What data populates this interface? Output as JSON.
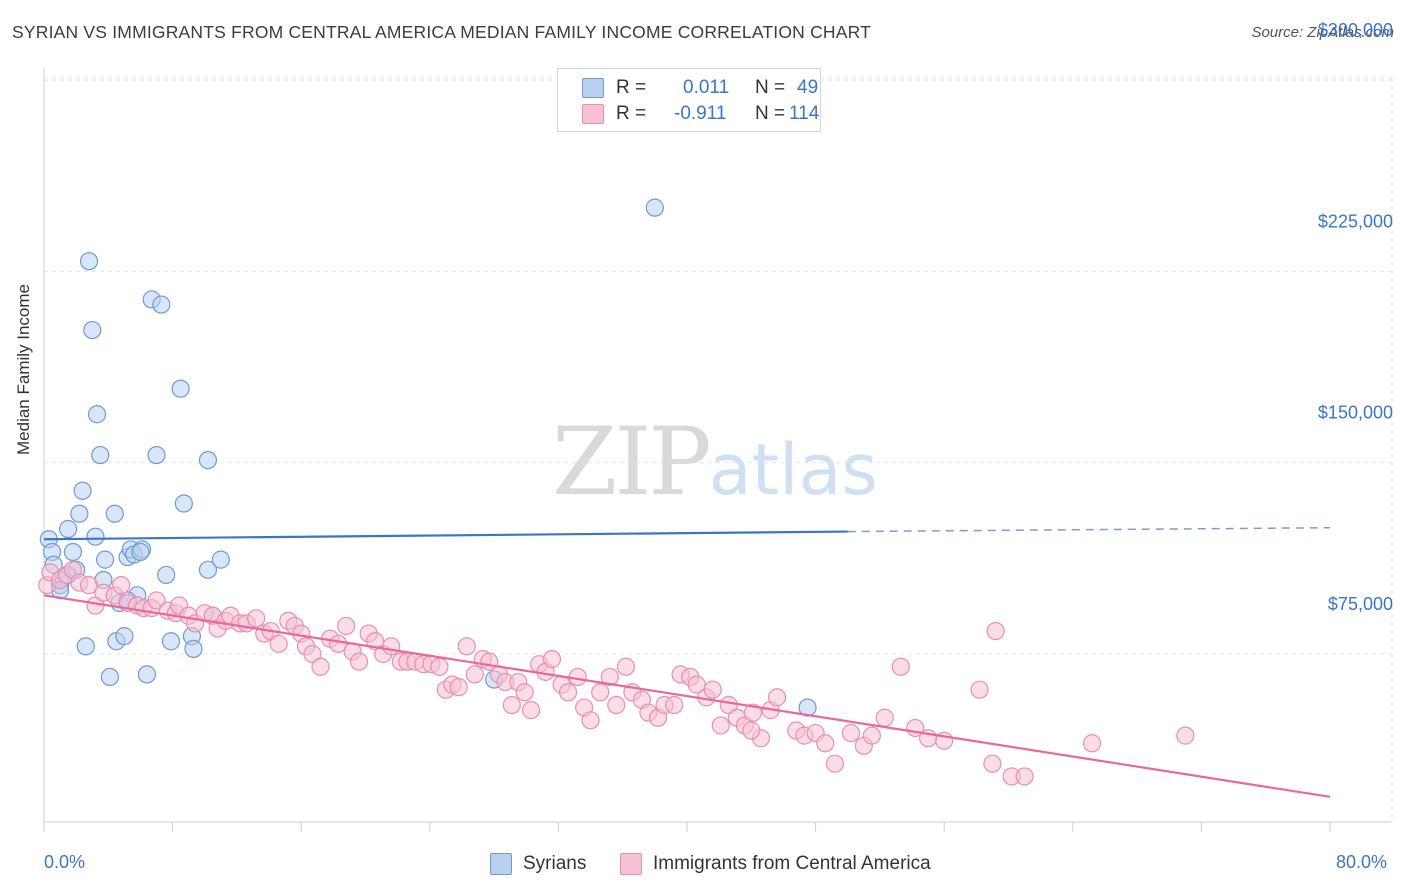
{
  "header": {
    "title": "SYRIAN VS IMMIGRANTS FROM CENTRAL AMERICA MEDIAN FAMILY INCOME CORRELATION CHART",
    "source": "Source: ZipAtlas.com"
  },
  "watermark": {
    "zip": "ZIP",
    "atlas": "atlas"
  },
  "legend_top": {
    "rows": [
      {
        "r_label": "R =",
        "r_value": "0.011",
        "n_label": "N =",
        "n_value": "49"
      },
      {
        "r_label": "R =",
        "r_value": "-0.911",
        "n_label": "N =",
        "n_value": "114"
      }
    ]
  },
  "legend_bottom": {
    "items": [
      {
        "label": "Syrians"
      },
      {
        "label": "Immigrants from Central America"
      }
    ]
  },
  "axes": {
    "ylabel": "Median Family Income",
    "x_min_label": "0.0%",
    "x_max_label": "80.0%",
    "y_ticks": [
      "$75,000",
      "$150,000",
      "$225,000",
      "$300,000"
    ]
  },
  "colors": {
    "syrians": "#3a76c8",
    "syrians_fill": "#b9d1f0",
    "central_america": "#e8689a",
    "central_america_fill": "#f6c1d4",
    "grid": "#e3e3e3",
    "axis_label": "#3a76c8"
  },
  "chart_data": {
    "type": "scatter",
    "xlim": [
      0,
      80
    ],
    "ylim": [
      25000,
      310000
    ],
    "y_ticks": [
      75000,
      150000,
      225000,
      300000
    ],
    "grid": true,
    "legend": "top-center",
    "series": [
      {
        "name": "Syrians",
        "r": 0.011,
        "n": 49,
        "trend": {
          "x": [
            0,
            50,
            80
          ],
          "y": [
            120000,
            123000,
            124500
          ],
          "solid_until": 50
        },
        "points": [
          [
            0.3,
            120000
          ],
          [
            0.5,
            115000
          ],
          [
            0.6,
            110000
          ],
          [
            1,
            102000
          ],
          [
            1.2,
            105000
          ],
          [
            1.5,
            124000
          ],
          [
            1.5,
            106000
          ],
          [
            1.8,
            115000
          ],
          [
            2.2,
            130000
          ],
          [
            2.4,
            139000
          ],
          [
            2.6,
            78000
          ],
          [
            2.8,
            229000
          ],
          [
            3,
            202000
          ],
          [
            3.2,
            121000
          ],
          [
            3.3,
            169000
          ],
          [
            3.5,
            153000
          ],
          [
            3.7,
            104000
          ],
          [
            3.8,
            112000
          ],
          [
            4.1,
            66000
          ],
          [
            4.4,
            130000
          ],
          [
            4.5,
            80000
          ],
          [
            4.7,
            95000
          ],
          [
            5,
            82000
          ],
          [
            5.2,
            113000
          ],
          [
            5.4,
            116000
          ],
          [
            5.6,
            114000
          ],
          [
            5.8,
            98000
          ],
          [
            6.1,
            116000
          ],
          [
            6.4,
            67000
          ],
          [
            6.7,
            214000
          ],
          [
            7,
            153000
          ],
          [
            7.3,
            212000
          ],
          [
            7.6,
            106000
          ],
          [
            7.9,
            80000
          ],
          [
            8.5,
            179000
          ],
          [
            8.7,
            134000
          ],
          [
            9.2,
            82000
          ],
          [
            9.3,
            77000
          ],
          [
            10.2,
            151000
          ],
          [
            10.2,
            108000
          ],
          [
            11,
            112000
          ],
          [
            38,
            250000
          ],
          [
            28,
            65000
          ],
          [
            47.5,
            54000
          ],
          [
            2,
            108000
          ],
          [
            1,
            100000
          ],
          [
            6,
            115000
          ],
          [
            10.5,
            90000
          ],
          [
            5.2,
            96000
          ]
        ]
      },
      {
        "name": "Immigrants from Central America",
        "r": -0.911,
        "n": 114,
        "trend": {
          "x": [
            0,
            80
          ],
          "y": [
            98000,
            19000
          ]
        },
        "points": [
          [
            0.2,
            102000
          ],
          [
            0.4,
            107000
          ],
          [
            1,
            104000
          ],
          [
            1.4,
            106000
          ],
          [
            1.8,
            108000
          ],
          [
            2.2,
            103000
          ],
          [
            2.8,
            102000
          ],
          [
            3.2,
            94000
          ],
          [
            3.7,
            99000
          ],
          [
            4.4,
            98000
          ],
          [
            4.8,
            102000
          ],
          [
            5.2,
            95000
          ],
          [
            5.8,
            94000
          ],
          [
            6.2,
            93000
          ],
          [
            6.7,
            93000
          ],
          [
            7,
            96000
          ],
          [
            7.7,
            92000
          ],
          [
            8.2,
            91000
          ],
          [
            8.4,
            94000
          ],
          [
            9,
            90000
          ],
          [
            9.4,
            87000
          ],
          [
            10,
            91000
          ],
          [
            10.5,
            90000
          ],
          [
            10.8,
            85000
          ],
          [
            11.3,
            88000
          ],
          [
            11.6,
            90000
          ],
          [
            12.2,
            87000
          ],
          [
            12.6,
            87000
          ],
          [
            13.2,
            89000
          ],
          [
            13.7,
            83000
          ],
          [
            14.1,
            84000
          ],
          [
            14.6,
            79000
          ],
          [
            15.2,
            88000
          ],
          [
            15.6,
            86000
          ],
          [
            16,
            83000
          ],
          [
            16.3,
            78000
          ],
          [
            16.7,
            75000
          ],
          [
            17.2,
            70000
          ],
          [
            17.8,
            81000
          ],
          [
            18.3,
            79000
          ],
          [
            18.8,
            86000
          ],
          [
            19.2,
            76000
          ],
          [
            19.6,
            72000
          ],
          [
            20.2,
            83000
          ],
          [
            20.6,
            80000
          ],
          [
            21.1,
            75000
          ],
          [
            21.6,
            78000
          ],
          [
            22.2,
            72000
          ],
          [
            22.6,
            72000
          ],
          [
            23.1,
            72000
          ],
          [
            23.6,
            71000
          ],
          [
            24.1,
            71000
          ],
          [
            24.6,
            70000
          ],
          [
            25,
            61000
          ],
          [
            25.4,
            63000
          ],
          [
            25.8,
            62000
          ],
          [
            26.3,
            78000
          ],
          [
            26.8,
            67000
          ],
          [
            27.3,
            73000
          ],
          [
            27.7,
            72000
          ],
          [
            28.3,
            67000
          ],
          [
            28.7,
            64000
          ],
          [
            29.1,
            55000
          ],
          [
            29.5,
            64000
          ],
          [
            29.9,
            60000
          ],
          [
            30.3,
            53000
          ],
          [
            30.8,
            71000
          ],
          [
            31.2,
            68000
          ],
          [
            31.6,
            73000
          ],
          [
            32.2,
            63000
          ],
          [
            32.6,
            60000
          ],
          [
            33.2,
            66000
          ],
          [
            33.6,
            54000
          ],
          [
            34,
            49000
          ],
          [
            34.6,
            60000
          ],
          [
            35.2,
            66000
          ],
          [
            35.6,
            55000
          ],
          [
            36.2,
            70000
          ],
          [
            36.6,
            60000
          ],
          [
            37.2,
            57000
          ],
          [
            37.6,
            52000
          ],
          [
            38.2,
            50000
          ],
          [
            38.6,
            55000
          ],
          [
            39.2,
            55000
          ],
          [
            39.6,
            67000
          ],
          [
            40.2,
            66000
          ],
          [
            40.6,
            63000
          ],
          [
            41.2,
            58000
          ],
          [
            41.6,
            61000
          ],
          [
            42.1,
            47000
          ],
          [
            42.6,
            55000
          ],
          [
            43.1,
            50000
          ],
          [
            43.6,
            47000
          ],
          [
            44.1,
            52000
          ],
          [
            44.6,
            42000
          ],
          [
            45.2,
            53000
          ],
          [
            45.6,
            58000
          ],
          [
            46.8,
            45000
          ],
          [
            47.3,
            43000
          ],
          [
            48,
            44000
          ],
          [
            48.6,
            40000
          ],
          [
            49.2,
            32000
          ],
          [
            50.2,
            44000
          ],
          [
            51,
            39000
          ],
          [
            52.3,
            50000
          ],
          [
            53.3,
            70000
          ],
          [
            54.2,
            46000
          ],
          [
            55,
            42000
          ],
          [
            56,
            41000
          ],
          [
            58.2,
            61000
          ],
          [
            59,
            32000
          ],
          [
            60.2,
            27000
          ],
          [
            61,
            27000
          ],
          [
            59.2,
            84000
          ],
          [
            65.2,
            40000
          ],
          [
            71,
            43000
          ],
          [
            44,
            45000
          ],
          [
            51.5,
            43000
          ]
        ]
      }
    ]
  }
}
